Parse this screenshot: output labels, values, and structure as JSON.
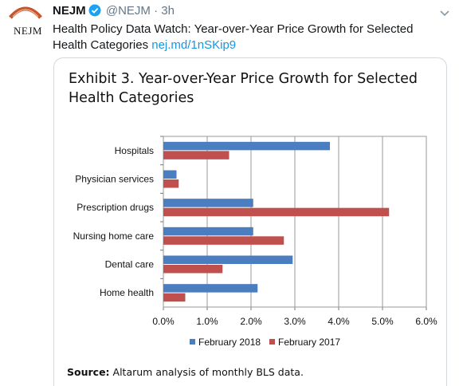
{
  "tweet": {
    "author_name": "NEJM",
    "handle": "@NEJM",
    "separator": "·",
    "time": "3h",
    "text": "Health Policy Data Watch: Year-over-Year Price Growth for Selected Health Categories ",
    "link": "nej.md/1nSKip9",
    "avatar_logo_text": "NEJM",
    "avatar_seal_text": "NEJM",
    "verified_icon": "verified-badge-icon",
    "caret_icon": "chevron-down-icon"
  },
  "card": {
    "title": "Exhibit 3. Year-over-Year Price Growth for Selected Health Categories",
    "source_label": "Source:",
    "source_text": " Altarum analysis of monthly BLS data."
  },
  "chart_data": {
    "type": "bar",
    "orientation": "horizontal",
    "categories": [
      "Hospitals",
      "Physician services",
      "Prescription drugs",
      "Nursing home care",
      "Dental care",
      "Home health"
    ],
    "series": [
      {
        "name": "February 2018",
        "color": "#4a7ec0",
        "values": [
          3.8,
          0.3,
          2.05,
          2.05,
          2.95,
          2.15
        ]
      },
      {
        "name": "February 2017",
        "color": "#c0504d",
        "values": [
          1.5,
          0.35,
          5.15,
          2.75,
          1.35,
          0.5
        ]
      }
    ],
    "xlim": [
      0,
      6
    ],
    "xticks": [
      "0.0%",
      "1.0%",
      "2.0%",
      "3.0%",
      "4.0%",
      "5.0%",
      "6.0%"
    ],
    "grid": true,
    "legend_position": "bottom"
  },
  "colors": {
    "link": "#1b95e0",
    "verified": "#1da1f2",
    "meta": "#657786",
    "grid": "#999999"
  }
}
